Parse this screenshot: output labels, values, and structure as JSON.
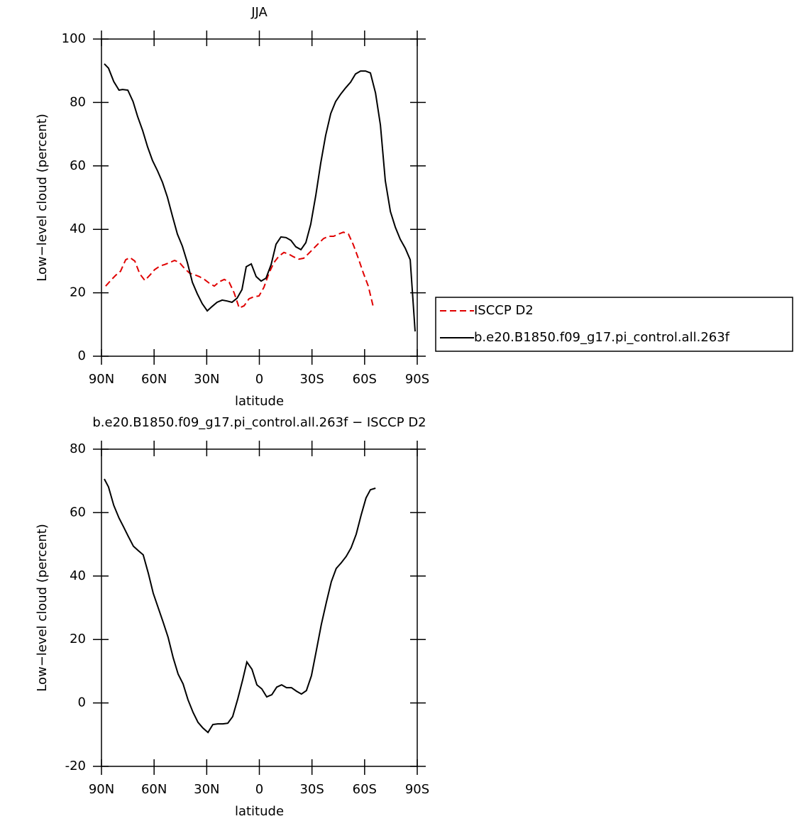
{
  "chart_data": [
    {
      "type": "line",
      "title": "JJA",
      "xlabel": "latitude",
      "ylabel": "Low−level cloud (percent)",
      "xlim": [
        90,
        -90
      ],
      "ylim": [
        0,
        100
      ],
      "xticks": [
        {
          "value": 90,
          "label": "90N"
        },
        {
          "value": 60,
          "label": "60N"
        },
        {
          "value": 30,
          "label": "30N"
        },
        0,
        {
          "value": -30,
          "label": "30S"
        },
        {
          "value": -60,
          "label": "60S"
        },
        {
          "value": -90,
          "label": "90S"
        }
      ],
      "yticks": [
        0,
        20,
        40,
        60,
        80,
        100
      ],
      "legend": "right",
      "series": [
        {
          "name": "ISCCP D2",
          "color": "#e00000",
          "dashed": true,
          "x": [
            87.6,
            84.7,
            81.9,
            79.1,
            76.2,
            73.8,
            71,
            68.2,
            65.3,
            62.5,
            59.7,
            56.8,
            54,
            51.2,
            48.3,
            45.5,
            42.7,
            39.8,
            37,
            34.2,
            31.3,
            28.5,
            25.7,
            22.8,
            20,
            17.2,
            14.3,
            11.5,
            8.7,
            5.9,
            3,
            0.2,
            -2.6,
            -5.5,
            -8.3,
            -11.1,
            -14,
            -16.8,
            -19.6,
            -22.5,
            -25.3,
            -28.1,
            -31,
            -33.8,
            -36.6,
            -39.4,
            -42.3,
            -45.1,
            -47.9,
            -50.8,
            -53.6,
            -56.4,
            -59.3,
            -62.1,
            -64.9
          ],
          "values": [
            22.1,
            23.9,
            25.5,
            26.8,
            30.4,
            31.1,
            30,
            26,
            23.9,
            25.5,
            27.3,
            28.4,
            28.9,
            29.5,
            30.2,
            29.5,
            27.7,
            26.2,
            25.7,
            25.1,
            24.2,
            23,
            22.1,
            23.5,
            24.2,
            23.3,
            19.9,
            15.2,
            15.9,
            18.1,
            18.8,
            19,
            21.7,
            26.2,
            29.5,
            31.5,
            32.7,
            32.2,
            31.3,
            30.6,
            30.9,
            32.4,
            34,
            35.6,
            37.1,
            37.8,
            37.8,
            38.5,
            39.1,
            38.5,
            35.1,
            30.9,
            26.2,
            22.1,
            15.7
          ]
        },
        {
          "name": "b.e20.B1850.f09_g17.pi_control.all.263f",
          "color": "#000000",
          "dashed": false,
          "x": [
            88.4,
            86,
            83,
            80,
            78,
            75,
            72,
            69.4,
            66.5,
            63.7,
            60.9,
            58,
            55.2,
            52.4,
            49.5,
            46.7,
            43.9,
            41,
            38.2,
            35.4,
            32.6,
            29.7,
            26.9,
            24.1,
            21.2,
            18.4,
            15.6,
            12.7,
            9.9,
            7.5,
            4.6,
            1.8,
            -1,
            -3.8,
            -6.7,
            -9.5,
            -12.3,
            -15.2,
            -18,
            -20.8,
            -23.7,
            -26.5,
            -29.3,
            -32.2,
            -35,
            -37.8,
            -40.7,
            -43.5,
            -46.3,
            -49.2,
            -52,
            -54.8,
            -57.7,
            -60.5,
            -63.3,
            -66.2,
            -69,
            -71.8,
            -74.7,
            -77.5,
            -80.3,
            -83.2,
            -86,
            -88.8
          ],
          "values": [
            92.2,
            90.8,
            86.6,
            83.9,
            84.1,
            83.9,
            80.3,
            75.6,
            71.1,
            66,
            61.7,
            58.4,
            54.8,
            50.1,
            44.1,
            38.5,
            34.7,
            29.5,
            23.3,
            19.7,
            16.6,
            14.3,
            15.7,
            17,
            17.7,
            17.4,
            17,
            18.3,
            21,
            28.2,
            29.1,
            25.1,
            23.7,
            24.6,
            28.9,
            35.3,
            37.6,
            37.4,
            36.5,
            34.5,
            33.6,
            35.8,
            41.6,
            50.8,
            60.9,
            69.6,
            76.5,
            80.3,
            82.6,
            84.6,
            86.4,
            89,
            89.9,
            89.9,
            89.3,
            83,
            72.9,
            55.3,
            45.6,
            40.7,
            36.9,
            34,
            30.4,
            7.8
          ]
        }
      ]
    },
    {
      "type": "line",
      "title": "b.e20.B1850.f09_g17.pi_control.all.263f − ISCCP D2",
      "xlabel": "latitude",
      "ylabel": "Low−level cloud (percent)",
      "xlim": [
        90,
        -90
      ],
      "ylim": [
        -20,
        80
      ],
      "xticks": [
        {
          "value": 90,
          "label": "90N"
        },
        {
          "value": 60,
          "label": "60N"
        },
        {
          "value": 30,
          "label": "30N"
        },
        0,
        {
          "value": -30,
          "label": "30S"
        },
        {
          "value": -60,
          "label": "60S"
        },
        {
          "value": -90,
          "label": "90S"
        }
      ],
      "yticks": [
        -20,
        0,
        20,
        40,
        60,
        80
      ],
      "color": "#000000",
      "x": [
        88.4,
        86,
        83,
        80,
        77.5,
        74.7,
        71.8,
        69,
        66.2,
        63.3,
        60.5,
        57.6,
        54.8,
        52,
        49.1,
        46.3,
        43.5,
        40.7,
        37.8,
        35,
        32.2,
        29.3,
        26.5,
        23.7,
        20.8,
        18,
        15.2,
        12.3,
        9.5,
        7.1,
        4.2,
        1.4,
        -1.4,
        -4.2,
        -7.1,
        -9.9,
        -12.7,
        -15.5,
        -18.3,
        -21.2,
        -24,
        -26.8,
        -29.7,
        -32.5,
        -35.3,
        -38.2,
        -41,
        -43.8,
        -46.7,
        -49.5,
        -52.3,
        -55.2,
        -58,
        -60.8,
        -63.3,
        -66.2
      ],
      "values": [
        70.6,
        68.1,
        62.3,
        58.3,
        55.6,
        52.5,
        49.4,
        48,
        46.7,
        40.9,
        34.6,
        29.9,
        25.4,
        20.7,
        14.2,
        9.1,
        6,
        1,
        -3,
        -6.1,
        -7.9,
        -9.3,
        -6.8,
        -6.6,
        -6.6,
        -6.4,
        -4.3,
        1.3,
        7.3,
        12.9,
        10.6,
        5.7,
        4.4,
        1.9,
        2.6,
        5,
        5.7,
        4.8,
        4.8,
        3.7,
        2.8,
        3.9,
        8.6,
        16.5,
        24.7,
        31.7,
        38.2,
        42.4,
        44.2,
        46.2,
        48.9,
        53.2,
        59.2,
        64.6,
        67.2,
        67.7
      ]
    }
  ]
}
